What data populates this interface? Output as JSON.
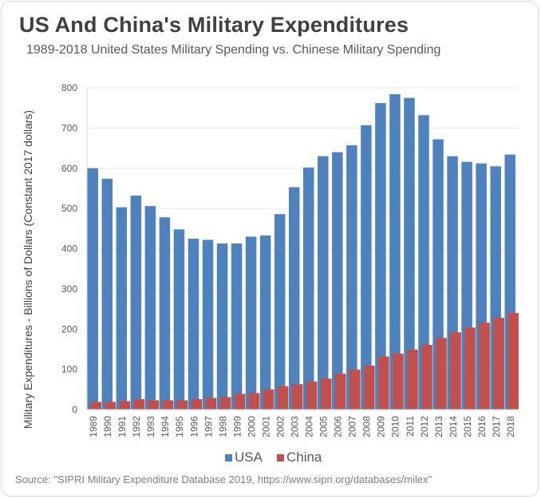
{
  "chart_data": {
    "type": "bar",
    "title": "US And China's Military Expenditures",
    "subtitle": "1989-2018 United States Military Spending vs. Chinese Military Spending",
    "xlabel": "",
    "ylabel": "Military Expenditures - Billions of Dollars (Constant 2017 dollars)",
    "ylim": [
      0,
      800
    ],
    "yticks": [
      0,
      100,
      200,
      300,
      400,
      500,
      600,
      700,
      800
    ],
    "grid": true,
    "legend_position": "bottom",
    "categories": [
      "1989",
      "1990",
      "1991",
      "1992",
      "1993",
      "1994",
      "1995",
      "1996",
      "1997",
      "1998",
      "1999",
      "2000",
      "2001",
      "2002",
      "2003",
      "2004",
      "2005",
      "2006",
      "2007",
      "2008",
      "2009",
      "2010",
      "2011",
      "2012",
      "2013",
      "2014",
      "2015",
      "2016",
      "2017",
      "2018"
    ],
    "series": [
      {
        "name": "USA",
        "color": "#4F81BD",
        "values": [
          600,
          574,
          503,
          532,
          506,
          478,
          448,
          425,
          422,
          413,
          413,
          430,
          433,
          486,
          553,
          602,
          630,
          640,
          657,
          707,
          762,
          784,
          775,
          732,
          672,
          630,
          616,
          612,
          605,
          634
        ]
      },
      {
        "name": "China",
        "color": "#C0504D",
        "values": [
          19,
          19,
          21,
          26,
          23,
          23,
          23,
          26,
          29,
          31,
          39,
          41,
          50,
          58,
          63,
          70,
          77,
          89,
          99,
          109,
          132,
          139,
          149,
          161,
          178,
          192,
          204,
          216,
          228,
          240
        ]
      }
    ],
    "source": "Source: \"SIPRI Military Expenditure Database 2019, https://www.sipri.org/databases/milex\""
  }
}
